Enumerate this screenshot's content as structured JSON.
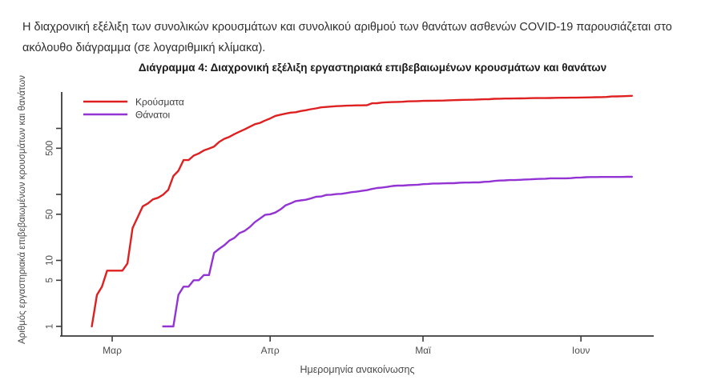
{
  "intro_paragraph": "Η διαχρονική εξέλιξη των συνολικών κρουσμάτων και συνολικού αριθμού των θανάτων ασθενών COVID-19 παρουσιάζεται στο ακόλουθο διάγραμμα (σε λογαριθμική κλίμακα).",
  "chart_data": {
    "type": "line",
    "title": "Διάγραμμα 4: Διαχρονική εξέλιξη εργαστηριακά επιβεβαιωμένων κρουσμάτων και θανάτων",
    "xlabel": "Ημερομηνία ανακοίνωσης",
    "ylabel": "Αριθμός εργαστηριακά επιβεβαιωμένων κρουσμάτων και θανάτων",
    "y_scale": "log",
    "ylim": [
      0.7,
      3500
    ],
    "grid": false,
    "legend_position": "top-left",
    "x_start_date": "2020-02-26",
    "x_ticks": [
      {
        "label": "Μαρ",
        "day": 4
      },
      {
        "label": "Απρ",
        "day": 35
      },
      {
        "label": "Μαϊ",
        "day": 65
      },
      {
        "label": "Ιουν",
        "day": 96
      }
    ],
    "y_ticks": [
      {
        "value": 1,
        "label": "1"
      },
      {
        "value": 5,
        "label": "5"
      },
      {
        "value": 10,
        "label": "10"
      },
      {
        "value": 50,
        "label": "50"
      },
      {
        "value": 100,
        "label": ""
      },
      {
        "value": 500,
        "label": "500"
      },
      {
        "value": 1000,
        "label": ""
      }
    ],
    "colors": {
      "cases": "#df2020",
      "deaths": "#9333d4",
      "axis": "#3c3c3c",
      "tick_text": "#4d4d4d"
    },
    "series": [
      {
        "name": "Κρούσματα",
        "color": "#df2020",
        "start_day": 0,
        "values": [
          1,
          3,
          4,
          7,
          7,
          7,
          7,
          9,
          31,
          45,
          66,
          73,
          84,
          89,
          99,
          117,
          190,
          228,
          331,
          331,
          387,
          418,
          464,
          495,
          530,
          624,
          695,
          743,
          821,
          892,
          966,
          1061,
          1156,
          1212,
          1314,
          1415,
          1544,
          1613,
          1673,
          1735,
          1755,
          1832,
          1884,
          1955,
          2011,
          2081,
          2114,
          2145,
          2170,
          2192,
          2207,
          2224,
          2235,
          2235,
          2245,
          2401,
          2408,
          2463,
          2490,
          2506,
          2517,
          2534,
          2566,
          2576,
          2591,
          2612,
          2620,
          2626,
          2632,
          2642,
          2663,
          2678,
          2691,
          2710,
          2716,
          2726,
          2744,
          2760,
          2770,
          2810,
          2819,
          2834,
          2836,
          2840,
          2850,
          2853,
          2873,
          2876,
          2878,
          2882,
          2892,
          2906,
          2909,
          2915,
          2917,
          2918,
          2937,
          2941,
          2952,
          2967,
          2980,
          2997,
          3049,
          3058,
          3068,
          3088,
          3112
        ]
      },
      {
        "name": "Θάνατοι",
        "color": "#9333d4",
        "start_day": 14,
        "values": [
          1,
          1,
          1,
          3,
          4,
          4,
          5,
          5,
          6,
          6,
          13,
          15,
          17,
          20,
          22,
          26,
          28,
          32,
          38,
          43,
          49,
          50,
          53,
          59,
          68,
          73,
          79,
          81,
          83,
          87,
          92,
          93,
          98,
          99,
          101,
          102,
          105,
          108,
          110,
          113,
          116,
          121,
          125,
          127,
          130,
          134,
          136,
          136,
          138,
          139,
          140,
          143,
          144,
          146,
          146,
          147,
          148,
          148,
          150,
          151,
          151,
          152,
          152,
          155,
          156,
          160,
          162,
          163,
          165,
          165,
          166,
          168,
          169,
          171,
          172,
          173,
          175,
          175,
          175,
          175,
          176,
          179,
          180,
          182,
          183,
          183,
          184,
          184,
          184,
          184,
          184,
          185,
          185
        ]
      }
    ]
  }
}
